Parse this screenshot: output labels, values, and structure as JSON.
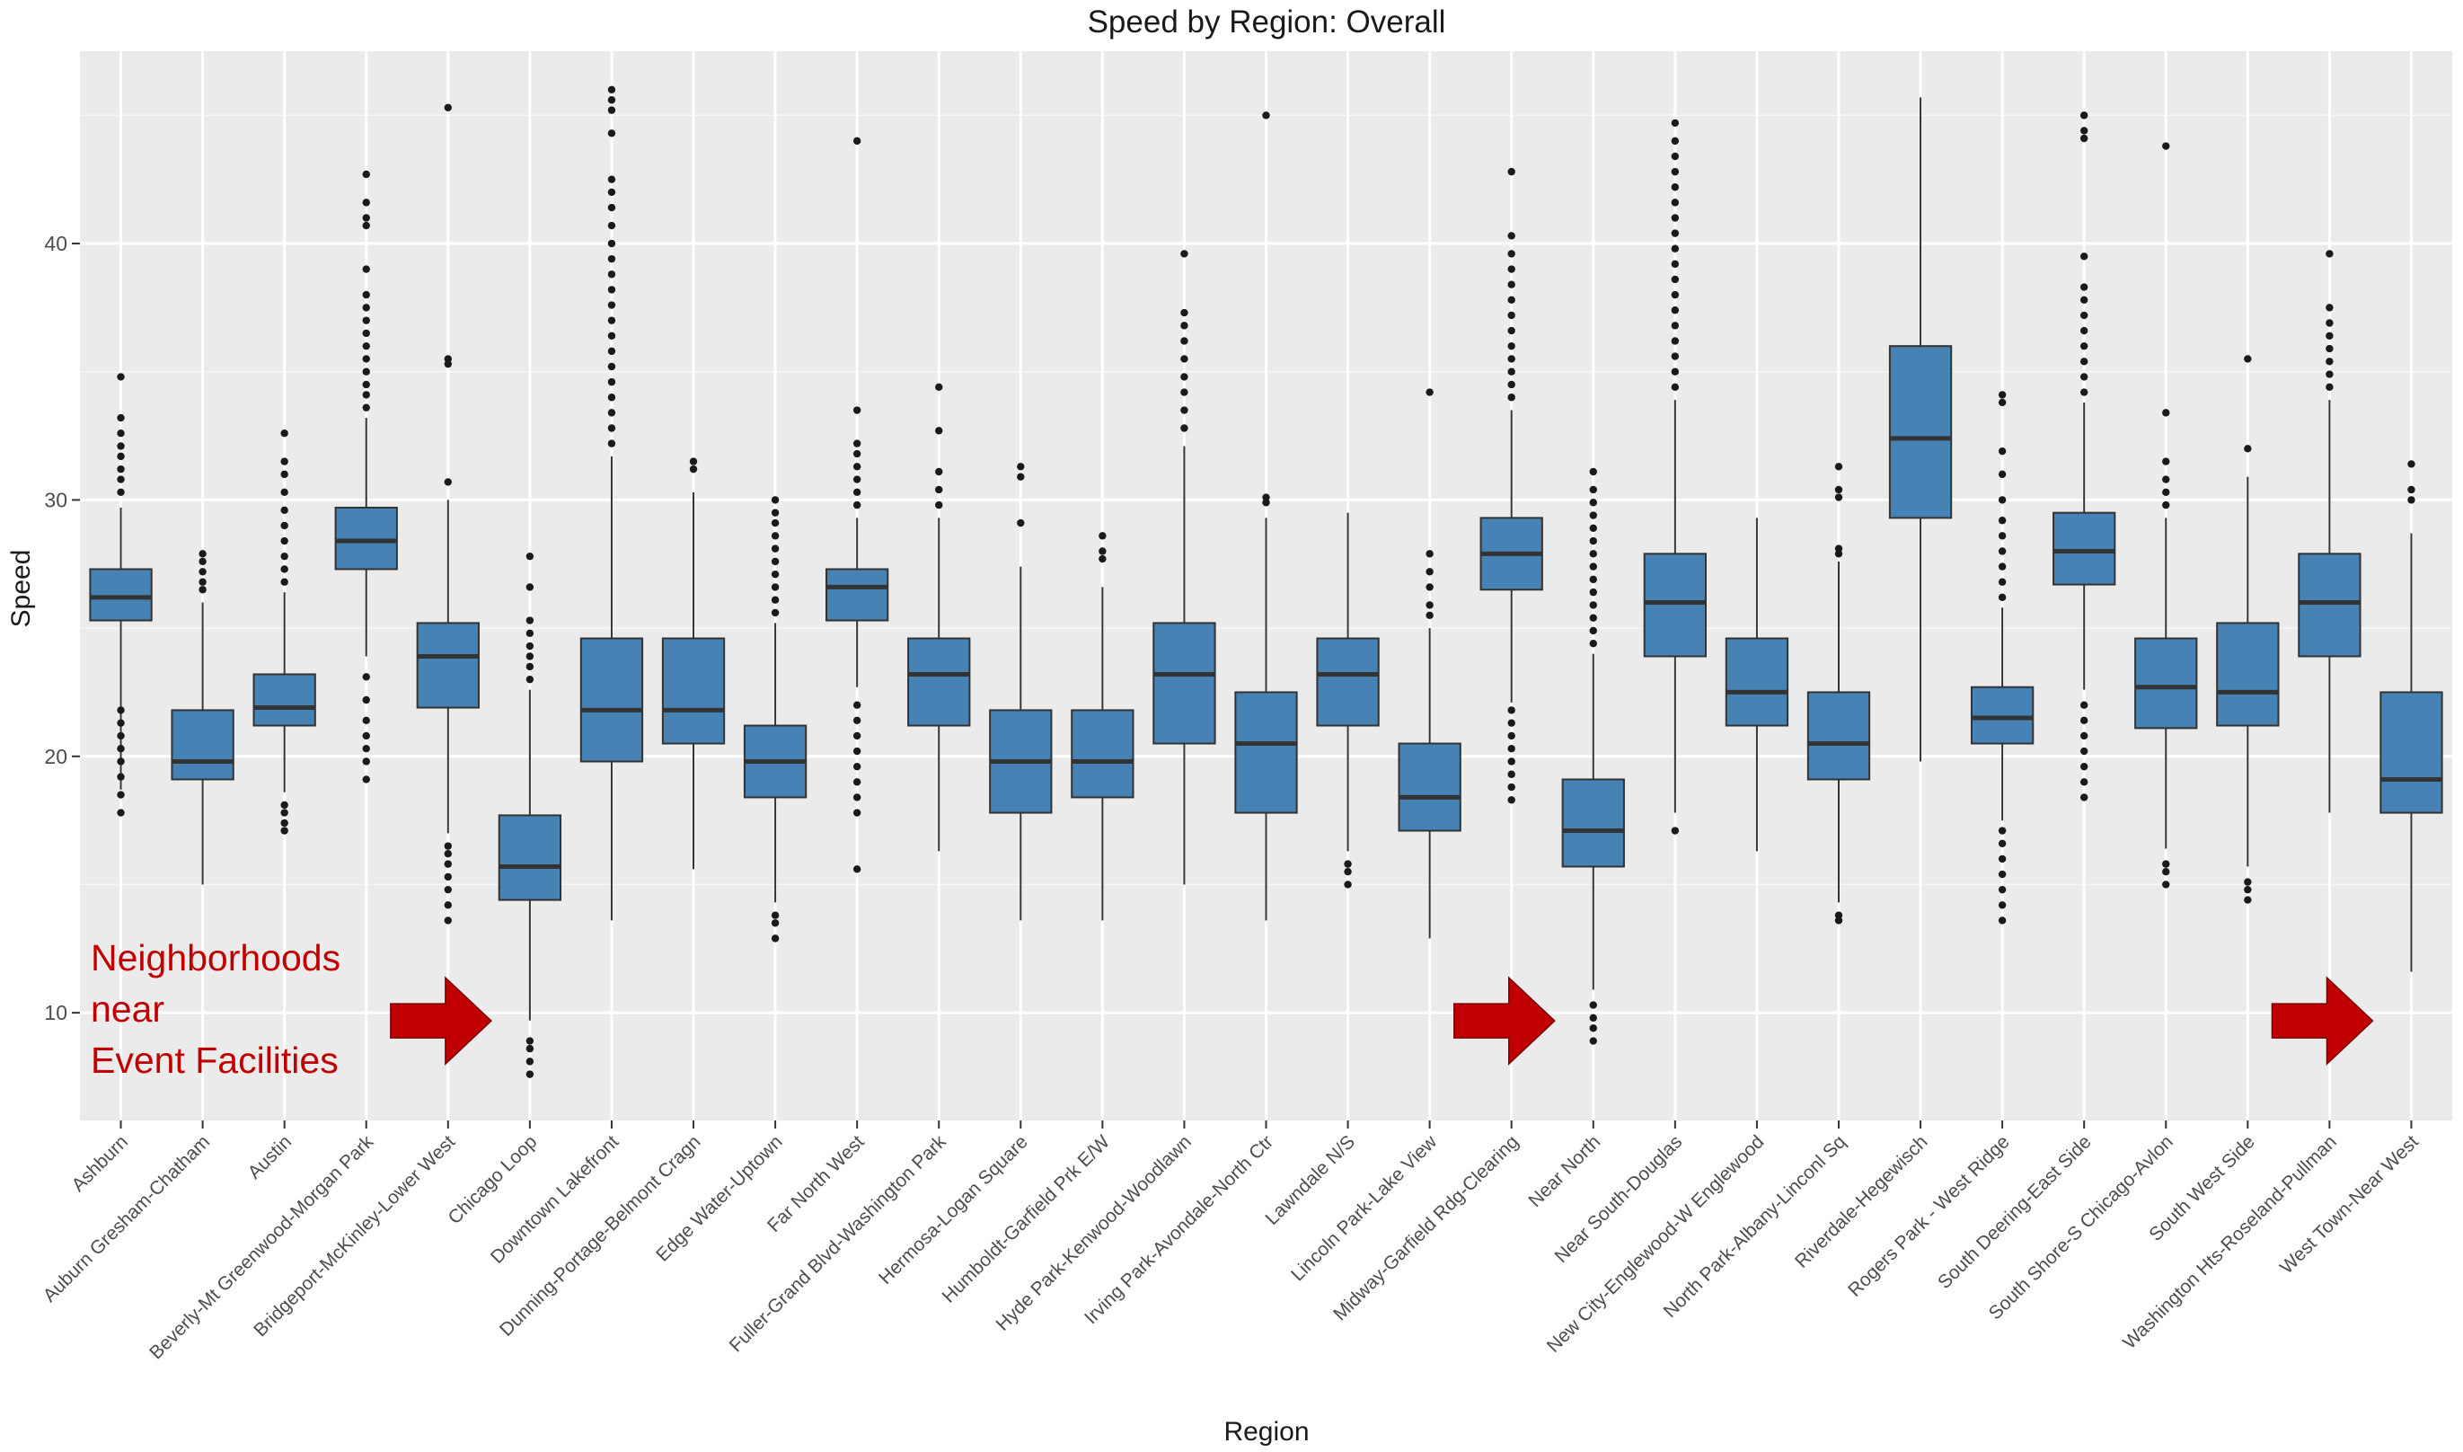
{
  "chart_data": {
    "type": "boxplot",
    "title": "Speed by Region: Overall",
    "xlabel": "Region",
    "ylabel": "Speed",
    "ylim": [
      5.8,
      47.5
    ],
    "yticks": [
      10,
      20,
      30,
      40
    ],
    "grid": true,
    "box_color": "#4682b4",
    "panel_background": "#ebebeb",
    "annotation": {
      "lines": [
        "Neighborhoods",
        "near",
        "Event Facilities"
      ],
      "color": "#c00000",
      "arrow_targets": [
        "Chicago Loop",
        "Near North",
        "West Town-Near West"
      ]
    },
    "series": [
      {
        "category": "Ashburn",
        "whisker_low": 18.7,
        "q1": 25.3,
        "median": 26.2,
        "q3": 27.3,
        "whisker_high": 29.7,
        "outliers": [
          17.8,
          18.5,
          19.2,
          19.8,
          20.3,
          20.8,
          21.3,
          21.8,
          30.3,
          30.8,
          31.2,
          31.7,
          32.1,
          32.6,
          33.2,
          34.8
        ]
      },
      {
        "category": "Auburn Gresham-Chatham",
        "whisker_low": 15.0,
        "q1": 19.1,
        "median": 19.8,
        "q3": 21.8,
        "whisker_high": 26.0,
        "outliers": [
          26.5,
          26.8,
          27.2,
          27.6,
          27.9
        ]
      },
      {
        "category": "Austin",
        "whisker_low": 18.6,
        "q1": 21.2,
        "median": 21.9,
        "q3": 23.2,
        "whisker_high": 26.4,
        "outliers": [
          17.1,
          17.4,
          17.8,
          18.1,
          26.8,
          27.3,
          27.8,
          28.4,
          29.0,
          29.6,
          30.3,
          31.0,
          31.5,
          32.6
        ]
      },
      {
        "category": "Beverly-Mt Greenwood-Morgan Park",
        "whisker_low": 23.9,
        "q1": 27.3,
        "median": 28.4,
        "q3": 29.7,
        "whisker_high": 33.2,
        "outliers": [
          19.1,
          19.8,
          20.3,
          20.8,
          21.4,
          22.2,
          23.1,
          33.6,
          34.1,
          34.5,
          35.0,
          35.5,
          36.0,
          36.5,
          37.0,
          37.5,
          38.0,
          39.0,
          40.7,
          41.0,
          41.6,
          42.7
        ]
      },
      {
        "category": "Bridgeport-McKinley-Lower West",
        "whisker_low": 17.0,
        "q1": 21.9,
        "median": 23.9,
        "q3": 25.2,
        "whisker_high": 30.0,
        "outliers": [
          13.6,
          14.2,
          14.8,
          15.3,
          15.8,
          16.2,
          16.5,
          30.7,
          35.3,
          35.5,
          45.3
        ]
      },
      {
        "category": "Chicago Loop",
        "whisker_low": 9.7,
        "q1": 14.4,
        "median": 15.7,
        "q3": 17.7,
        "whisker_high": 22.6,
        "outliers": [
          7.6,
          8.1,
          8.6,
          8.9,
          23.0,
          23.5,
          23.9,
          24.3,
          24.8,
          25.3,
          26.6,
          27.8
        ]
      },
      {
        "category": "Downtown Lakefront",
        "whisker_low": 13.6,
        "q1": 19.8,
        "median": 21.8,
        "q3": 24.6,
        "whisker_high": 31.7,
        "outliers": [
          32.2,
          32.8,
          33.4,
          34.0,
          34.6,
          35.2,
          35.8,
          36.4,
          37.0,
          37.6,
          38.2,
          38.8,
          39.4,
          40.0,
          40.7,
          41.4,
          42.0,
          42.5,
          44.3,
          45.2,
          45.6,
          46.0
        ]
      },
      {
        "category": "Dunning-Portage-Belmont Cragn",
        "whisker_low": 15.6,
        "q1": 20.5,
        "median": 21.8,
        "q3": 24.6,
        "whisker_high": 30.3,
        "outliers": [
          31.2,
          31.5
        ]
      },
      {
        "category": "Edge Water-Uptown",
        "whisker_low": 14.3,
        "q1": 18.4,
        "median": 19.8,
        "q3": 21.2,
        "whisker_high": 25.2,
        "outliers": [
          12.9,
          13.5,
          13.8,
          25.6,
          26.1,
          26.6,
          27.1,
          27.6,
          28.1,
          28.6,
          29.1,
          29.5,
          30.0
        ]
      },
      {
        "category": "Far North West",
        "whisker_low": 22.7,
        "q1": 25.3,
        "median": 26.6,
        "q3": 27.3,
        "whisker_high": 29.3,
        "outliers": [
          15.6,
          17.8,
          18.4,
          19.0,
          19.6,
          20.2,
          20.8,
          21.4,
          22.0,
          29.8,
          30.3,
          30.8,
          31.3,
          31.8,
          32.2,
          33.5,
          44.0
        ]
      },
      {
        "category": "Fuller-Grand Blvd-Washington Park",
        "whisker_low": 16.3,
        "q1": 21.2,
        "median": 23.2,
        "q3": 24.6,
        "whisker_high": 29.3,
        "outliers": [
          29.8,
          30.4,
          31.1,
          32.7,
          34.4
        ]
      },
      {
        "category": "Hermosa-Logan Square",
        "whisker_low": 13.6,
        "q1": 17.8,
        "median": 19.8,
        "q3": 21.8,
        "whisker_high": 27.4,
        "outliers": [
          29.1,
          30.9,
          31.3
        ]
      },
      {
        "category": "Humboldt-Garfield Prk E/W",
        "whisker_low": 13.6,
        "q1": 18.4,
        "median": 19.8,
        "q3": 21.8,
        "whisker_high": 26.6,
        "outliers": [
          27.7,
          28.0,
          28.6
        ]
      },
      {
        "category": "Hyde Park-Kenwood-Woodlawn",
        "whisker_low": 15.0,
        "q1": 20.5,
        "median": 23.2,
        "q3": 25.2,
        "whisker_high": 32.1,
        "outliers": [
          32.8,
          33.5,
          34.2,
          34.8,
          35.5,
          36.2,
          36.8,
          37.3,
          39.6
        ]
      },
      {
        "category": "Irving Park-Avondale-North Ctr",
        "whisker_low": 13.6,
        "q1": 17.8,
        "median": 20.5,
        "q3": 22.5,
        "whisker_high": 29.3,
        "outliers": [
          29.9,
          30.1,
          45.0
        ]
      },
      {
        "category": "Lawndale N/S",
        "whisker_low": 16.3,
        "q1": 21.2,
        "median": 23.2,
        "q3": 24.6,
        "whisker_high": 29.5,
        "outliers": [
          15.0,
          15.5,
          15.8
        ]
      },
      {
        "category": "Lincoln Park-Lake View",
        "whisker_low": 12.9,
        "q1": 17.1,
        "median": 18.4,
        "q3": 20.5,
        "whisker_high": 25.0,
        "outliers": [
          25.5,
          25.9,
          26.6,
          27.2,
          27.9,
          34.2
        ]
      },
      {
        "category": "Midway-Garfield Rdg-Clearing",
        "whisker_low": 22.1,
        "q1": 26.5,
        "median": 27.9,
        "q3": 29.3,
        "whisker_high": 33.5,
        "outliers": [
          18.3,
          18.8,
          19.3,
          19.8,
          20.3,
          20.8,
          21.3,
          21.8,
          34.0,
          34.5,
          35.0,
          35.5,
          36.0,
          36.6,
          37.2,
          37.8,
          38.4,
          39.0,
          39.6,
          40.3,
          42.8
        ]
      },
      {
        "category": "Near North",
        "whisker_low": 10.9,
        "q1": 15.7,
        "median": 17.1,
        "q3": 19.1,
        "whisker_high": 24.0,
        "outliers": [
          8.9,
          9.4,
          9.8,
          10.3,
          24.4,
          24.9,
          25.4,
          25.9,
          26.4,
          26.9,
          27.4,
          27.9,
          28.4,
          28.9,
          29.4,
          29.9,
          30.4,
          31.1
        ]
      },
      {
        "category": "Near South-Douglas",
        "whisker_low": 17.8,
        "q1": 23.9,
        "median": 26.0,
        "q3": 27.9,
        "whisker_high": 33.9,
        "outliers": [
          17.1,
          34.4,
          35.0,
          35.6,
          36.2,
          36.8,
          37.4,
          38.0,
          38.6,
          39.2,
          39.8,
          40.4,
          41.0,
          41.6,
          42.2,
          42.8,
          43.4,
          44.0,
          44.7
        ]
      },
      {
        "category": "New City-Englewood-W Englewood",
        "whisker_low": 16.3,
        "q1": 21.2,
        "median": 22.5,
        "q3": 24.6,
        "whisker_high": 29.3,
        "outliers": []
      },
      {
        "category": "North Park-Albany-Linconl Sq",
        "whisker_low": 14.3,
        "q1": 19.1,
        "median": 20.5,
        "q3": 22.5,
        "whisker_high": 27.6,
        "outliers": [
          13.6,
          13.8,
          27.9,
          28.1,
          30.1,
          30.4,
          31.3
        ]
      },
      {
        "category": "Riverdale-Hegewisch",
        "whisker_low": 19.8,
        "q1": 29.3,
        "median": 32.4,
        "q3": 36.0,
        "whisker_high": 45.7,
        "outliers": []
      },
      {
        "category": "Rogers Park - West Ridge",
        "whisker_low": 17.5,
        "q1": 20.5,
        "median": 21.5,
        "q3": 22.7,
        "whisker_high": 25.8,
        "outliers": [
          13.6,
          14.2,
          14.8,
          15.4,
          16.0,
          16.6,
          17.1,
          26.2,
          26.8,
          27.4,
          28.0,
          28.6,
          29.2,
          30.0,
          31.0,
          31.9,
          33.8,
          34.1
        ]
      },
      {
        "category": "South Deering-East Side",
        "whisker_low": 22.6,
        "q1": 26.7,
        "median": 28.0,
        "q3": 29.5,
        "whisker_high": 33.8,
        "outliers": [
          18.4,
          19.0,
          19.6,
          20.2,
          20.8,
          21.4,
          22.0,
          34.2,
          34.8,
          35.4,
          36.0,
          36.6,
          37.2,
          37.8,
          38.3,
          39.5,
          44.1,
          44.4,
          45.0
        ]
      },
      {
        "category": "South Shore-S Chicago-Avlon",
        "whisker_low": 16.4,
        "q1": 21.1,
        "median": 22.7,
        "q3": 24.6,
        "whisker_high": 29.3,
        "outliers": [
          15.0,
          15.5,
          15.8,
          29.8,
          30.3,
          30.8,
          31.5,
          33.4,
          43.8
        ]
      },
      {
        "category": "South West Side",
        "whisker_low": 15.7,
        "q1": 21.2,
        "median": 22.5,
        "q3": 25.2,
        "whisker_high": 30.9,
        "outliers": [
          14.4,
          14.8,
          15.1,
          32.0,
          35.5
        ]
      },
      {
        "category": "Washington Hts-Roseland-Pullman",
        "whisker_low": 17.8,
        "q1": 23.9,
        "median": 26.0,
        "q3": 27.9,
        "whisker_high": 33.9,
        "outliers": [
          34.4,
          34.9,
          35.4,
          35.9,
          36.4,
          36.9,
          37.5,
          39.6
        ]
      },
      {
        "category": "West Town-Near West",
        "whisker_low": 11.6,
        "q1": 17.8,
        "median": 19.1,
        "q3": 22.5,
        "whisker_high": 28.7,
        "outliers": [
          30.0,
          30.4,
          31.4
        ]
      }
    ]
  }
}
